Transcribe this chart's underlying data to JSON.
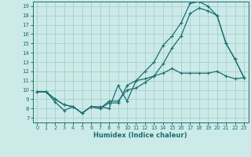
{
  "xlabel": "Humidex (Indice chaleur)",
  "xlim": [
    -0.5,
    23.5
  ],
  "ylim": [
    6.5,
    19.5
  ],
  "xticks": [
    0,
    1,
    2,
    3,
    4,
    5,
    6,
    7,
    8,
    9,
    10,
    11,
    12,
    13,
    14,
    15,
    16,
    17,
    18,
    19,
    20,
    21,
    22,
    23
  ],
  "yticks": [
    7,
    8,
    9,
    10,
    11,
    12,
    13,
    14,
    15,
    16,
    17,
    18,
    19
  ],
  "bg_color": "#cceae8",
  "grid_color": "#aad4d0",
  "line_color": "#1a7070",
  "curve1_x": [
    0,
    1,
    2,
    3,
    4,
    5,
    6,
    7,
    8,
    9,
    10,
    11,
    12,
    13,
    14,
    15,
    16,
    17,
    18,
    19,
    20,
    21,
    22,
    23
  ],
  "curve1_y": [
    9.8,
    9.8,
    9.0,
    8.4,
    8.2,
    7.5,
    8.2,
    8.2,
    8.0,
    10.5,
    8.8,
    11.0,
    12.0,
    13.0,
    14.8,
    15.8,
    17.2,
    19.3,
    19.5,
    19.0,
    18.0,
    15.0,
    13.3,
    11.3
  ],
  "curve2_x": [
    0,
    1,
    2,
    3,
    4,
    5,
    6,
    7,
    8,
    9,
    10,
    11,
    12,
    13,
    14,
    15,
    16,
    17,
    18,
    19,
    20,
    21,
    22,
    23
  ],
  "curve2_y": [
    9.8,
    9.8,
    8.7,
    7.8,
    8.2,
    7.5,
    8.2,
    8.0,
    8.8,
    8.8,
    10.0,
    10.2,
    10.8,
    11.5,
    12.8,
    14.5,
    15.8,
    18.2,
    18.8,
    18.5,
    18.0,
    15.0,
    13.3,
    11.3
  ],
  "curve3_x": [
    0,
    1,
    2,
    3,
    4,
    5,
    6,
    7,
    8,
    9,
    10,
    11,
    12,
    13,
    14,
    15,
    16,
    17,
    18,
    19,
    20,
    21,
    22,
    23
  ],
  "curve3_y": [
    9.8,
    9.8,
    9.0,
    8.4,
    8.2,
    7.5,
    8.2,
    8.0,
    8.6,
    8.6,
    10.5,
    11.0,
    11.2,
    11.5,
    11.8,
    12.3,
    11.8,
    11.8,
    11.8,
    11.8,
    12.0,
    11.5,
    11.2,
    11.3
  ]
}
